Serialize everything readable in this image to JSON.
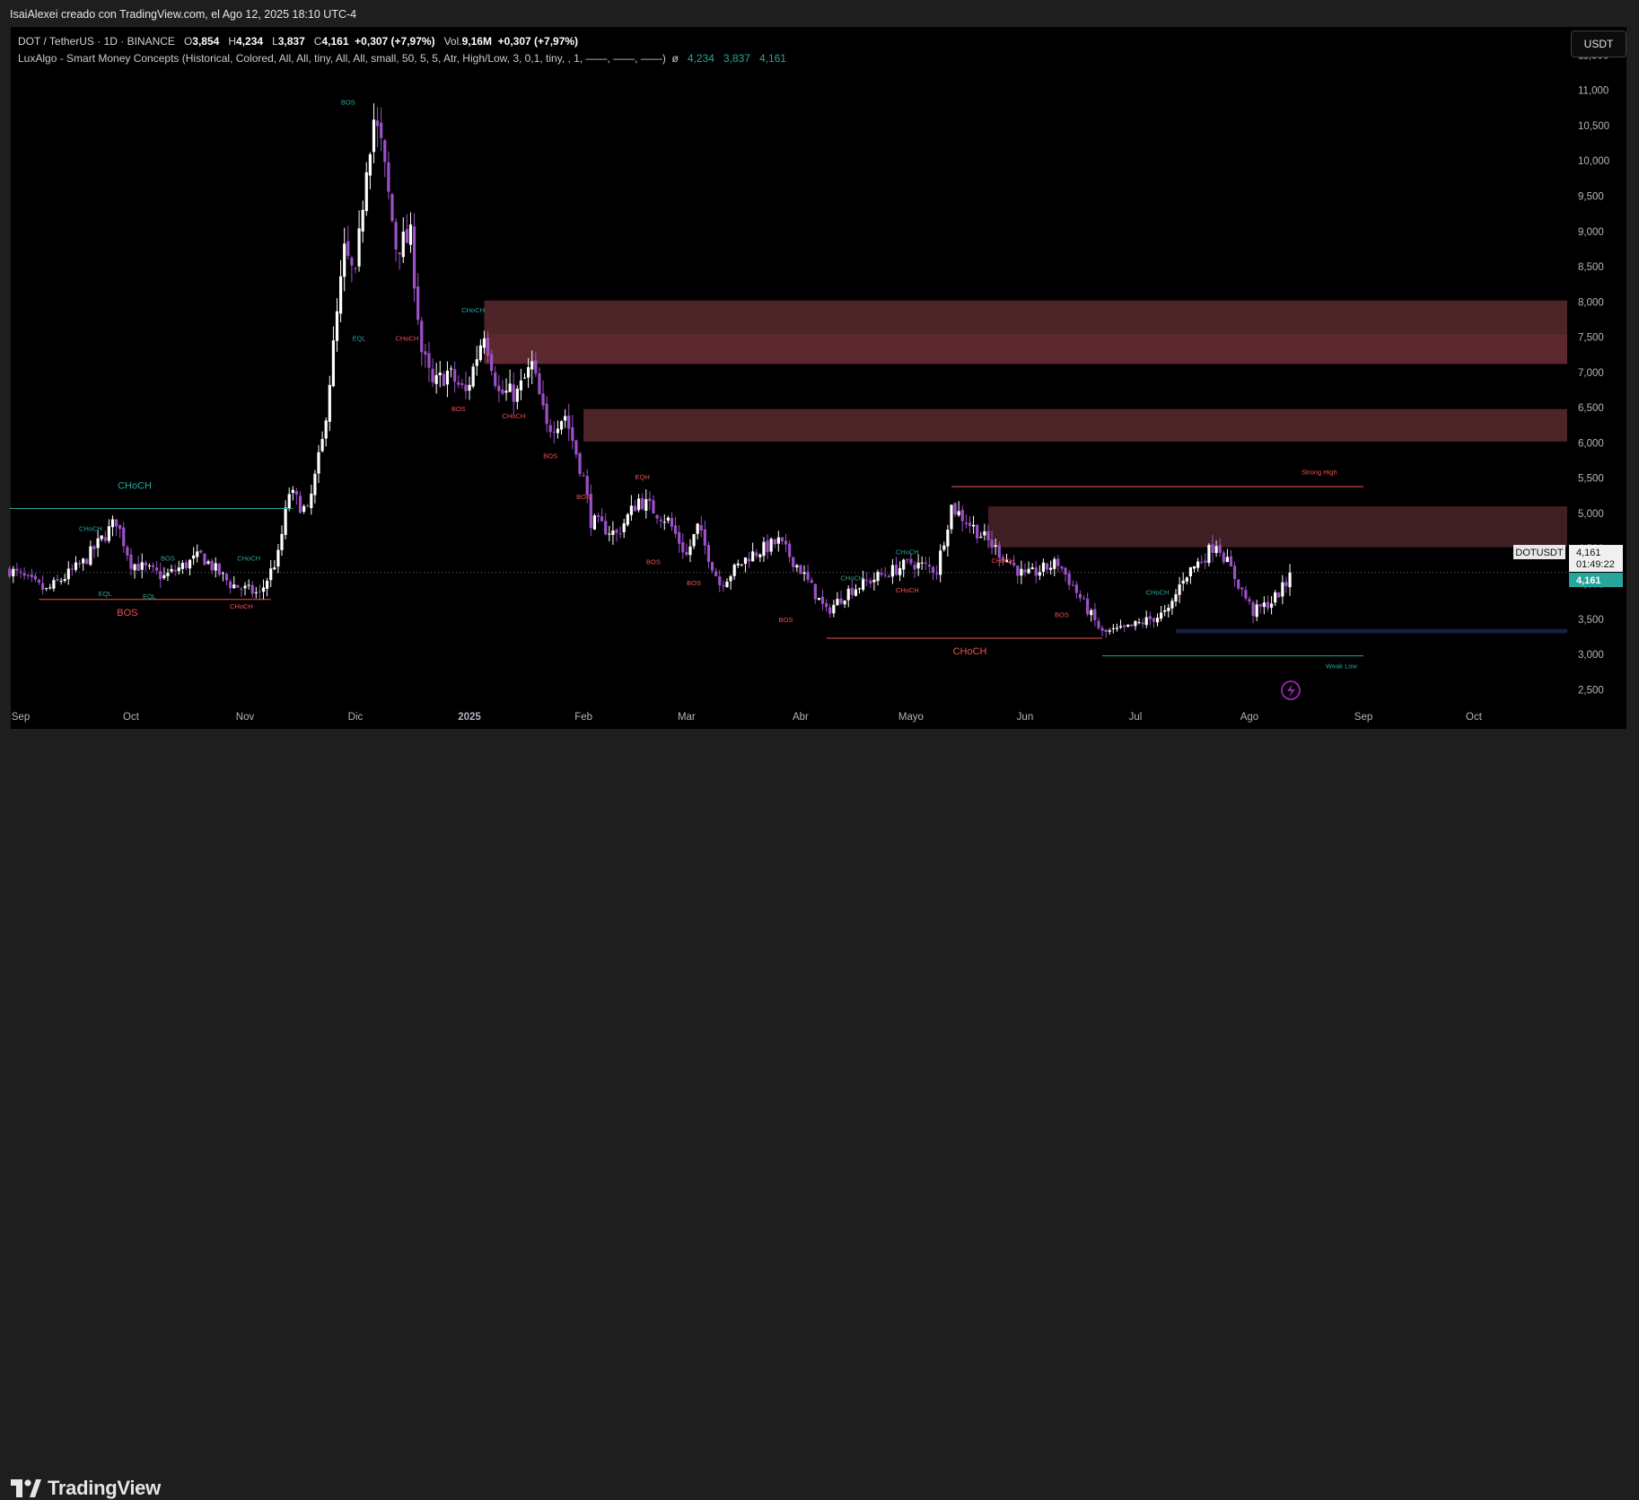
{
  "header": {
    "attribution": "IsaiAlexei creado con TradingView.com, el Ago 12, 2025 18:10 UTC-4"
  },
  "legend": {
    "symbol": "DOT / TetherUS · 1D · BINANCE",
    "o_label": "O",
    "o_value": "3,854",
    "h_label": "H",
    "h_value": "4,234",
    "l_label": "L",
    "l_value": "3,837",
    "c_label": "C",
    "c_value": "4,161",
    "change": "+0,307 (+7,97%)",
    "vol_label": "Vol.",
    "vol_value": "9,16M",
    "vol_change": "+0,307 (+7,97%)",
    "indicator": "LuxAlgo - Smart Money Concepts (Historical, Colored, All, All, tiny, All, All, small, 50, 5, 5, Atr, High/Low, 3, 0,1, tiny, , 1, ——, ——, ——)",
    "indicator_sym": "ø",
    "ind_v1": "4,234",
    "ind_v2": "3,837",
    "ind_v3": "4,161"
  },
  "currency_button": "USDT",
  "price_label": {
    "symbol": "DOTUSDT",
    "price": "4,161",
    "countdown": "01:49:22",
    "last": "4,161"
  },
  "footer": {
    "brand": "TradingView"
  },
  "chart_data": {
    "type": "candlestick",
    "symbol": "DOTUSDT",
    "timeframe": "1D",
    "ylim": [
      2.3,
      11.9
    ],
    "y_ticks": [
      "11,500",
      "11,000",
      "10,500",
      "10,000",
      "9,500",
      "9,000",
      "8,500",
      "8,000",
      "7,500",
      "7,000",
      "6,500",
      "6,000",
      "5,500",
      "5,000",
      "4,500",
      "4,000",
      "3,500",
      "3,000",
      "2,500"
    ],
    "y_tick_values": [
      11.5,
      11.0,
      10.5,
      10.0,
      9.5,
      9.0,
      8.5,
      8.0,
      7.5,
      7.0,
      6.5,
      6.0,
      5.5,
      5.0,
      4.5,
      4.0,
      3.5,
      3.0,
      2.5
    ],
    "x_ticks": [
      {
        "label": "Sep",
        "date": "2024-09-01"
      },
      {
        "label": "Oct",
        "date": "2024-10-01"
      },
      {
        "label": "Nov",
        "date": "2024-11-01"
      },
      {
        "label": "Dic",
        "date": "2024-12-01"
      },
      {
        "label": "2025",
        "date": "2025-01-01"
      },
      {
        "label": "Feb",
        "date": "2025-02-01"
      },
      {
        "label": "Mar",
        "date": "2025-03-01"
      },
      {
        "label": "Abr",
        "date": "2025-04-01"
      },
      {
        "label": "Mayo",
        "date": "2025-05-01"
      },
      {
        "label": "Jun",
        "date": "2025-06-01"
      },
      {
        "label": "Jul",
        "date": "2025-07-01"
      },
      {
        "label": "Ago",
        "date": "2025-08-01"
      },
      {
        "label": "Sep",
        "date": "2025-09-01"
      },
      {
        "label": "Oct",
        "date": "2025-10-01"
      }
    ],
    "first_date": "2024-08-29",
    "last_date": "2025-08-12",
    "close_path": [
      [
        "2024-08-29",
        4.2
      ],
      [
        "2024-09-08",
        3.9
      ],
      [
        "2024-09-18",
        4.3
      ],
      [
        "2024-09-27",
        4.9
      ],
      [
        "2024-10-01",
        4.3
      ],
      [
        "2024-10-10",
        4.1
      ],
      [
        "2024-10-20",
        4.4
      ],
      [
        "2024-10-28",
        4.0
      ],
      [
        "2024-11-05",
        3.85
      ],
      [
        "2024-11-10",
        4.4
      ],
      [
        "2024-11-13",
        5.3
      ],
      [
        "2024-11-18",
        5.0
      ],
      [
        "2024-11-22",
        6.0
      ],
      [
        "2024-11-26",
        7.8
      ],
      [
        "2024-11-28",
        8.7
      ],
      [
        "2024-12-01",
        8.3
      ],
      [
        "2024-12-04",
        10.0
      ],
      [
        "2024-12-06",
        10.6
      ],
      [
        "2024-12-08",
        10.2
      ],
      [
        "2024-12-12",
        8.8
      ],
      [
        "2024-12-16",
        8.9
      ],
      [
        "2024-12-19",
        7.3
      ],
      [
        "2024-12-22",
        6.8
      ],
      [
        "2024-12-26",
        7.0
      ],
      [
        "2024-12-31",
        6.7
      ],
      [
        "2025-01-05",
        7.6
      ],
      [
        "2025-01-09",
        6.7
      ],
      [
        "2025-01-14",
        6.7
      ],
      [
        "2025-01-18",
        7.1
      ],
      [
        "2025-01-22",
        6.2
      ],
      [
        "2025-01-27",
        6.4
      ],
      [
        "2025-02-01",
        5.5
      ],
      [
        "2025-02-03",
        4.9
      ],
      [
        "2025-02-10",
        4.7
      ],
      [
        "2025-02-16",
        5.2
      ],
      [
        "2025-02-24",
        4.9
      ],
      [
        "2025-03-01",
        4.4
      ],
      [
        "2025-03-04",
        4.8
      ],
      [
        "2025-03-10",
        4.0
      ],
      [
        "2025-03-18",
        4.4
      ],
      [
        "2025-03-26",
        4.6
      ],
      [
        "2025-04-01",
        4.2
      ],
      [
        "2025-04-08",
        3.6
      ],
      [
        "2025-04-14",
        3.9
      ],
      [
        "2025-04-22",
        4.1
      ],
      [
        "2025-05-01",
        4.3
      ],
      [
        "2025-05-08",
        4.2
      ],
      [
        "2025-05-12",
        5.1
      ],
      [
        "2025-05-18",
        4.8
      ],
      [
        "2025-05-24",
        4.5
      ],
      [
        "2025-06-01",
        4.1
      ],
      [
        "2025-06-10",
        4.3
      ],
      [
        "2025-06-16",
        3.8
      ],
      [
        "2025-06-22",
        3.3
      ],
      [
        "2025-06-28",
        3.35
      ],
      [
        "2025-07-05",
        3.5
      ],
      [
        "2025-07-10",
        3.6
      ],
      [
        "2025-07-14",
        4.1
      ],
      [
        "2025-07-20",
        4.4
      ],
      [
        "2025-07-23",
        4.6
      ],
      [
        "2025-07-29",
        4.0
      ],
      [
        "2025-08-02",
        3.6
      ],
      [
        "2025-08-07",
        3.75
      ],
      [
        "2025-08-11",
        4.0
      ],
      [
        "2025-08-12",
        4.161
      ]
    ],
    "overlays": {
      "zones": [
        {
          "from": "2025-01-05",
          "to_right_edge": true,
          "top": 8.02,
          "bottom": 7.55,
          "color": "#5a2a2f"
        },
        {
          "from": "2025-01-05",
          "to_right_edge": true,
          "top": 7.55,
          "bottom": 7.12,
          "color": "#6b3035"
        },
        {
          "from": "2025-02-01",
          "to_right_edge": true,
          "top": 6.48,
          "bottom": 6.02,
          "color": "#5a2a2f"
        },
        {
          "from": "2025-05-22",
          "to_right_edge": true,
          "top": 5.1,
          "bottom": 4.52,
          "color": "#4a2428"
        },
        {
          "from": "2025-07-12",
          "to_right_edge": true,
          "top": 3.36,
          "bottom": 3.3,
          "color": "#1a2550"
        }
      ],
      "lines": [
        {
          "from": "2024-08-29",
          "to": "2024-11-14",
          "y": 5.07,
          "color": "#26a69a"
        },
        {
          "from": "2024-09-06",
          "to": "2024-11-08",
          "y": 3.78,
          "color": "#ef5350"
        },
        {
          "from": "2025-05-12",
          "to": "2025-09-01",
          "y": 5.38,
          "color": "#ef5350"
        },
        {
          "from": "2025-04-08",
          "to": "2025-06-22",
          "y": 3.23,
          "color": "#ef5350"
        },
        {
          "from": "2025-06-22",
          "to": "2025-09-01",
          "y": 2.98,
          "color": "#26a69a"
        }
      ],
      "labels": [
        {
          "text": "CHoCH",
          "date": "2024-10-02",
          "y": 5.35,
          "color": "#26a69a",
          "size": "big"
        },
        {
          "text": "BOS",
          "date": "2024-09-30",
          "y": 3.55,
          "color": "#ef5350",
          "size": "big"
        },
        {
          "text": "CHoCH",
          "date": "2025-05-17",
          "y": 3.0,
          "color": "#ef5350",
          "size": "big"
        },
        {
          "text": "BOS",
          "date": "2024-11-29",
          "y": 10.8,
          "color": "#26a69a",
          "size": "small"
        },
        {
          "text": "EQL",
          "date": "2024-12-02",
          "y": 7.45,
          "color": "#26a69a",
          "size": "small"
        },
        {
          "text": "CHoCH",
          "date": "2024-12-15",
          "y": 7.45,
          "color": "#ef5350",
          "size": "small"
        },
        {
          "text": "CHoCH",
          "date": "2025-01-02",
          "y": 7.85,
          "color": "#26a69a",
          "size": "small"
        },
        {
          "text": "BOS",
          "date": "2024-12-29",
          "y": 6.45,
          "color": "#ef5350",
          "size": "small"
        },
        {
          "text": "CHoCH",
          "date": "2025-01-13",
          "y": 6.35,
          "color": "#ef5350",
          "size": "small"
        },
        {
          "text": "BOS",
          "date": "2025-01-23",
          "y": 5.78,
          "color": "#ef5350",
          "size": "small"
        },
        {
          "text": "BOS",
          "date": "2025-02-01",
          "y": 5.2,
          "color": "#ef5350",
          "size": "small"
        },
        {
          "text": "EQH",
          "date": "2025-02-17",
          "y": 5.48,
          "color": "#ef5350",
          "size": "small"
        },
        {
          "text": "BOS",
          "date": "2025-02-20",
          "y": 4.28,
          "color": "#ef5350",
          "size": "small"
        },
        {
          "text": "BOS",
          "date": "2025-03-03",
          "y": 3.98,
          "color": "#ef5350",
          "size": "small"
        },
        {
          "text": "BOS",
          "date": "2025-03-28",
          "y": 3.46,
          "color": "#ef5350",
          "size": "small"
        },
        {
          "text": "CHoCH",
          "date": "2024-09-20",
          "y": 4.75,
          "color": "#26a69a",
          "size": "small"
        },
        {
          "text": "BOS",
          "date": "2024-10-11",
          "y": 4.33,
          "color": "#26a69a",
          "size": "small"
        },
        {
          "text": "CHoCH",
          "date": "2024-11-02",
          "y": 4.33,
          "color": "#26a69a",
          "size": "small"
        },
        {
          "text": "EQL",
          "date": "2024-09-24",
          "y": 3.83,
          "color": "#26a69a",
          "size": "small"
        },
        {
          "text": "EQL",
          "date": "2024-10-06",
          "y": 3.79,
          "color": "#26a69a",
          "size": "small"
        },
        {
          "text": "CHoCH",
          "date": "2024-10-31",
          "y": 3.65,
          "color": "#ef5350",
          "size": "small"
        },
        {
          "text": "CHoCH",
          "date": "2025-04-15",
          "y": 4.05,
          "color": "#26a69a",
          "size": "small"
        },
        {
          "text": "CHoCH",
          "date": "2025-04-30",
          "y": 4.42,
          "color": "#26a69a",
          "size": "small"
        },
        {
          "text": "CHoCH",
          "date": "2025-04-30",
          "y": 3.88,
          "color": "#ef5350",
          "size": "small"
        },
        {
          "text": "CHoCH",
          "date": "2025-05-26",
          "y": 4.3,
          "color": "#ef5350",
          "size": "small"
        },
        {
          "text": "BOS",
          "date": "2025-06-11",
          "y": 3.53,
          "color": "#ef5350",
          "size": "small"
        },
        {
          "text": "CHoCH",
          "date": "2025-07-07",
          "y": 3.85,
          "color": "#26a69a",
          "size": "small"
        },
        {
          "text": "Strong High",
          "date": "2025-08-20",
          "y": 5.55,
          "color": "#ef5350",
          "size": "small"
        },
        {
          "text": "Weak Low",
          "date": "2025-08-26",
          "y": 2.8,
          "color": "#26a69a",
          "size": "small"
        }
      ]
    },
    "colors": {
      "up": "#ffffff",
      "down": "#9c50c8",
      "grid": "#000000",
      "last_price": "#26a69a"
    }
  }
}
